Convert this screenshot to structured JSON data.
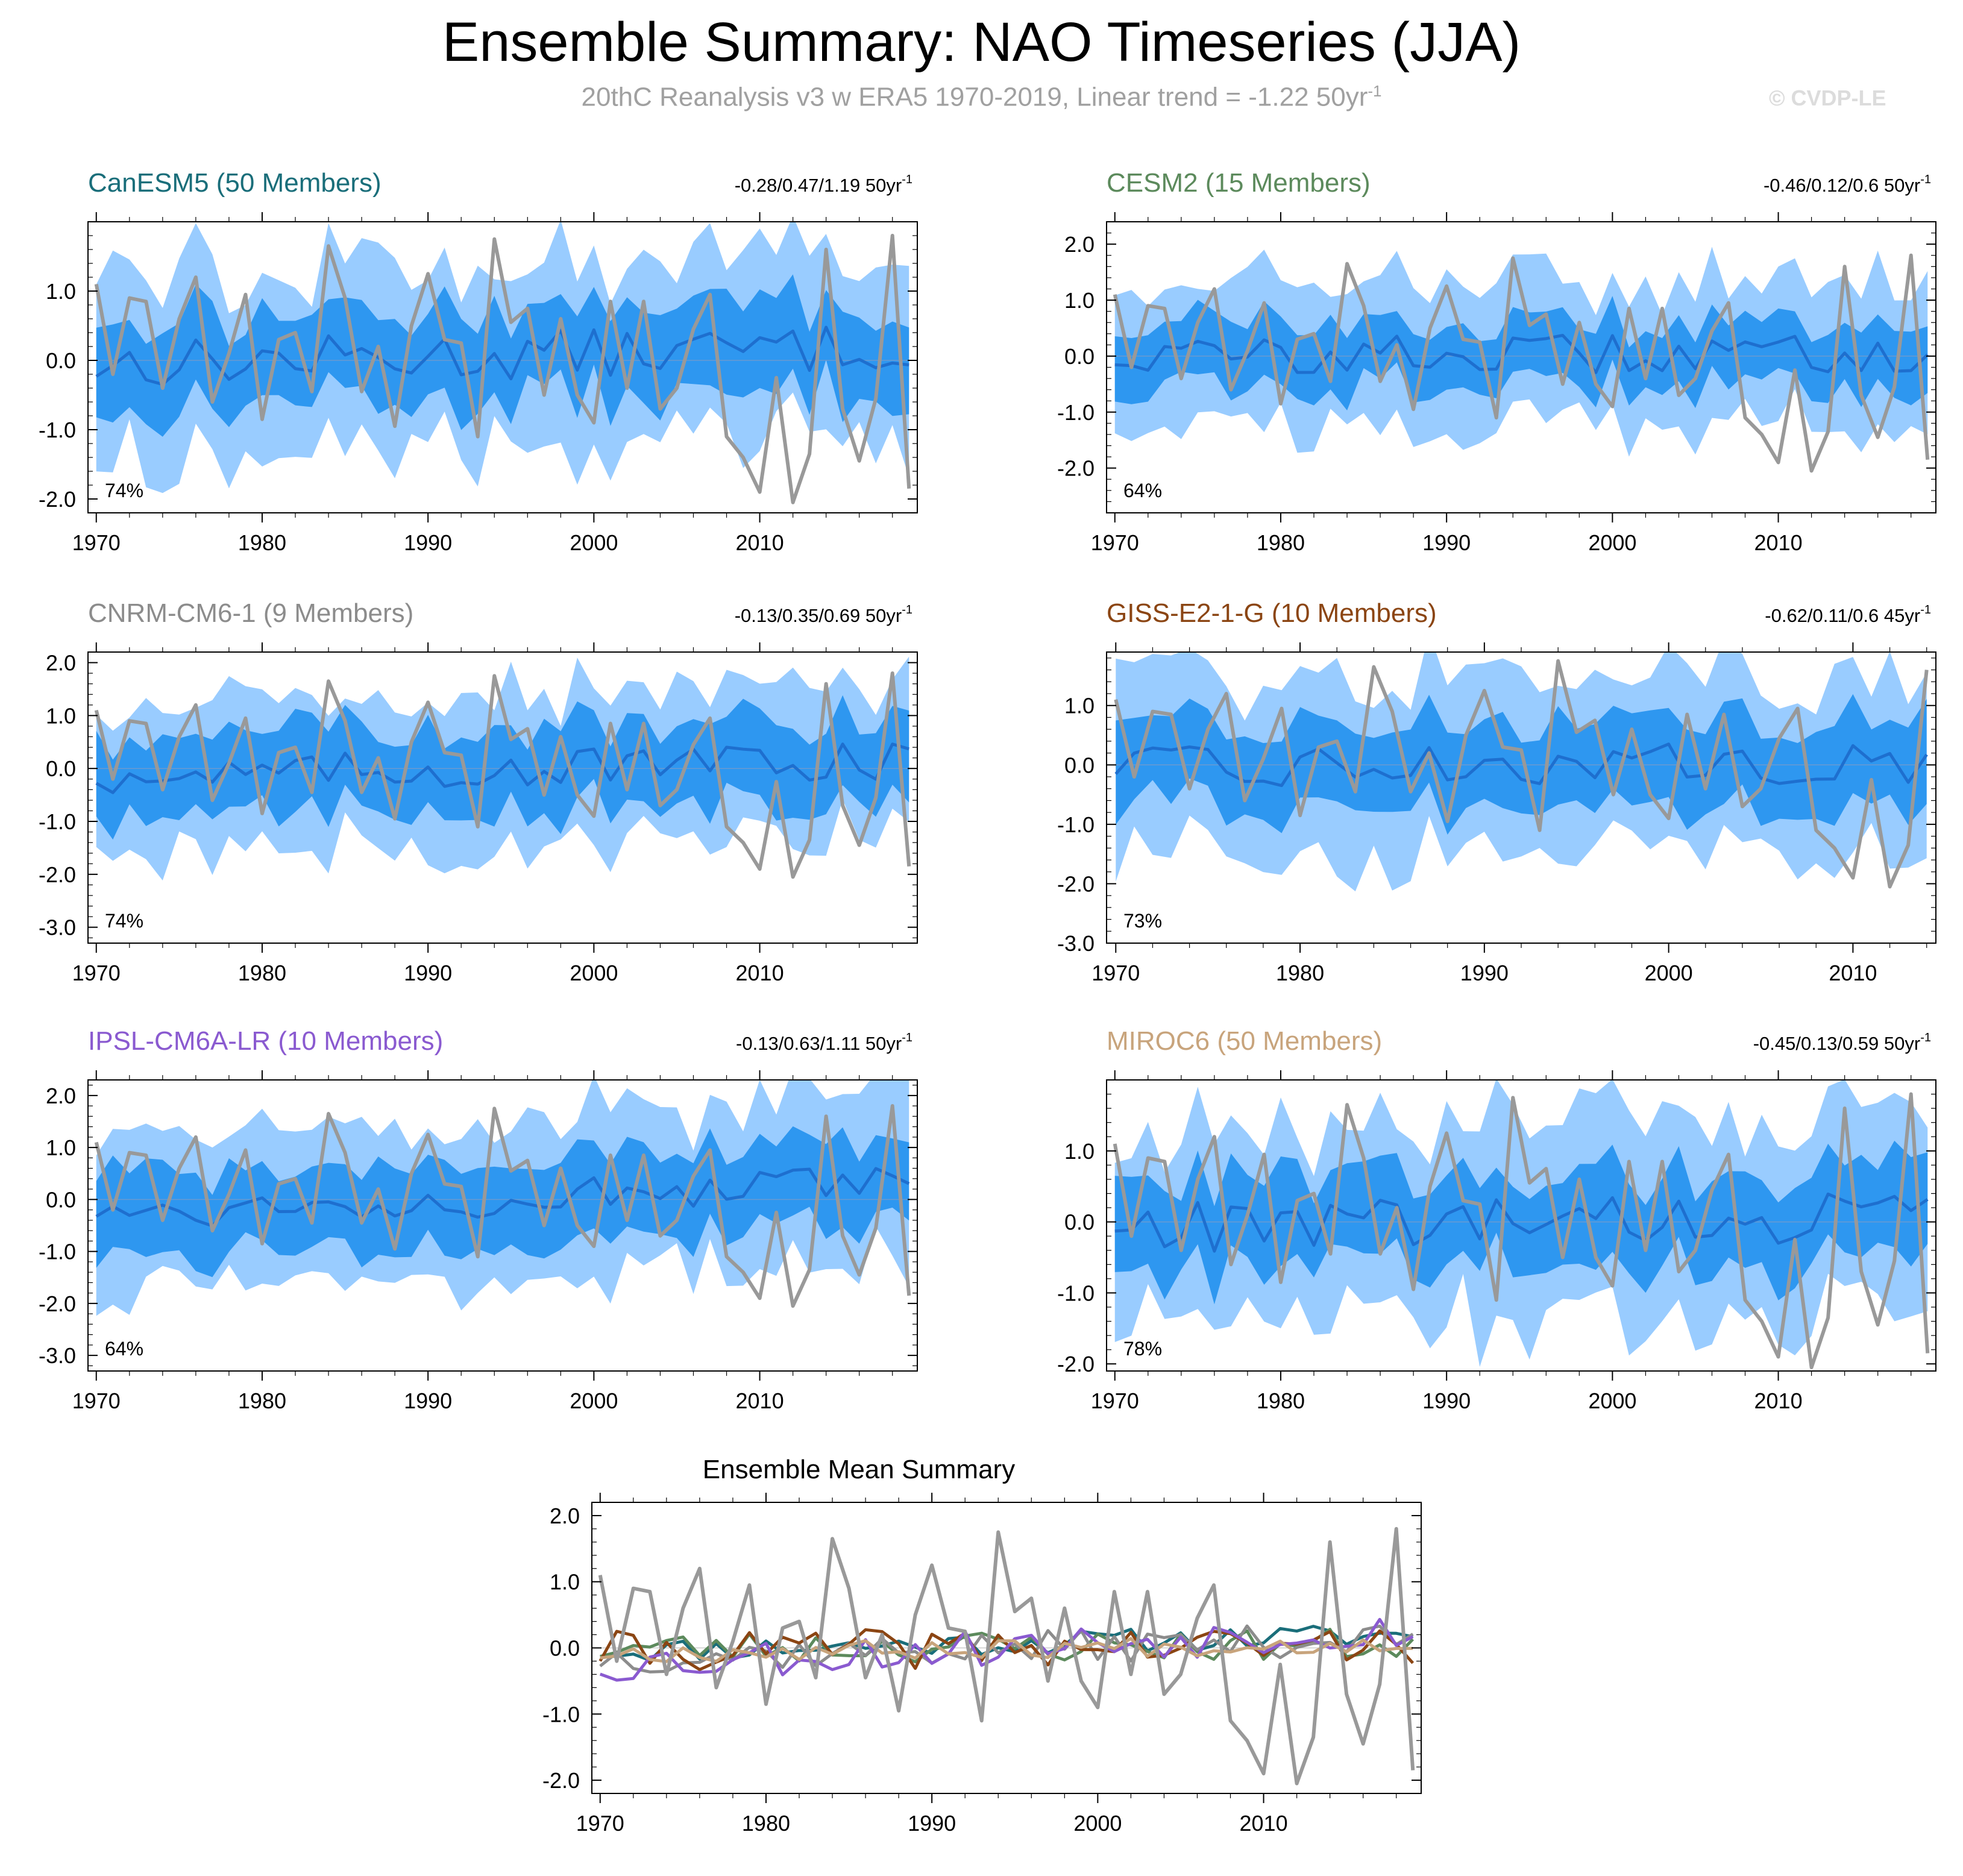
{
  "header": {
    "title": "Ensemble Summary: NAO Timeseries (JJA)",
    "subtitle_main": "20thC Reanalysis v3 w ERA5 1970-2019, Linear trend = -1.22 50yr",
    "subtitle_sup": "-1",
    "watermark": "© CVDP-LE"
  },
  "chart_data": [
    {
      "type": "area",
      "model": "CanESM5",
      "title": "CanESM5 (50 Members)",
      "title_color": "#1a6e7a",
      "trend_text": "-0.28/0.47/1.19 50yr",
      "trend_sup": "-1",
      "percent": "74%",
      "xlim": [
        1969.5,
        2019.5
      ],
      "ylim": [
        -2.2,
        2.0
      ],
      "yticks": [
        -2.0,
        -1.0,
        0.0,
        1.0
      ],
      "ytick_labels": [
        "-2.0",
        "-1.0",
        "0.0",
        "1.0"
      ],
      "xticks": [
        1970,
        1980,
        1990,
        2000,
        2010
      ],
      "ensemble_mean_base": -0.05,
      "ensemble_mean_trend": 0.25,
      "inner_halfwidth": 0.62,
      "outer_halfwidth": 1.25
    },
    {
      "type": "area",
      "model": "CESM2",
      "title": "CESM2 (15 Members)",
      "title_color": "#5c8a5c",
      "trend_text": "-0.46/0.12/0.6 50yr",
      "trend_sup": "-1",
      "percent": "64%",
      "xlim": [
        1969.5,
        2019.5
      ],
      "ylim": [
        -2.8,
        2.4
      ],
      "yticks": [
        -2.0,
        -1.0,
        0.0,
        1.0,
        2.0
      ],
      "ytick_labels": [
        "-2.0",
        "-1.0",
        "0.0",
        "1.0",
        "2.0"
      ],
      "xticks": [
        1970,
        1980,
        1990,
        2000,
        2010
      ],
      "ensemble_mean_base": 0.0,
      "ensemble_mean_trend": 0.05,
      "inner_halfwidth": 0.55,
      "outer_halfwidth": 1.25
    },
    {
      "type": "area",
      "model": "CNRM-CM6-1",
      "title": "CNRM-CM6-1 (9 Members)",
      "title_color": "#8c8c8c",
      "trend_text": "-0.13/0.35/0.69 50yr",
      "trend_sup": "-1",
      "percent": "74%",
      "xlim": [
        1969.5,
        2019.5
      ],
      "ylim": [
        -3.3,
        2.2
      ],
      "yticks": [
        -3.0,
        -2.0,
        -1.0,
        0.0,
        1.0,
        2.0
      ],
      "ytick_labels": [
        "-3.0",
        "-2.0",
        "-1.0",
        "0.0",
        "1.0",
        "2.0"
      ],
      "xticks": [
        1970,
        1980,
        1990,
        2000,
        2010
      ],
      "ensemble_mean_base": -0.15,
      "ensemble_mean_trend": 0.3,
      "inner_halfwidth": 0.75,
      "outer_halfwidth": 1.4
    },
    {
      "type": "area",
      "model": "GISS-E2-1-G",
      "title": "GISS-E2-1-G (10 Members)",
      "title_color": "#8b4513",
      "trend_text": "-0.62/0.11/0.6 45yr",
      "trend_sup": "-1",
      "percent": "73%",
      "xlim": [
        1969.5,
        2014.5
      ],
      "ylim": [
        -3.0,
        1.9
      ],
      "yticks": [
        -3.0,
        -2.0,
        -1.0,
        0.0,
        1.0
      ],
      "ytick_labels": [
        "-3.0",
        "-2.0",
        "-1.0",
        "0.0",
        "1.0"
      ],
      "xticks": [
        1970,
        1980,
        1990,
        2000,
        2010
      ],
      "ensemble_mean_base": -0.05,
      "ensemble_mean_trend": 0.1,
      "inner_halfwidth": 0.7,
      "outer_halfwidth": 1.45
    },
    {
      "type": "area",
      "model": "IPSL-CM6A-LR",
      "title": "IPSL-CM6A-LR (10 Members)",
      "title_color": "#8a5ad0",
      "trend_text": "-0.13/0.63/1.11 50yr",
      "trend_sup": "-1",
      "percent": "64%",
      "xlim": [
        1969.5,
        2019.5
      ],
      "ylim": [
        -3.3,
        2.3
      ],
      "yticks": [
        -3.0,
        -2.0,
        -1.0,
        0.0,
        1.0,
        2.0
      ],
      "ytick_labels": [
        "-3.0",
        "-2.0",
        "-1.0",
        "0.0",
        "1.0",
        "2.0"
      ],
      "xticks": [
        1970,
        1980,
        1990,
        2000,
        2010
      ],
      "ensemble_mean_base": -0.25,
      "ensemble_mean_trend": 0.55,
      "inner_halfwidth": 0.75,
      "outer_halfwidth": 1.5
    },
    {
      "type": "area",
      "model": "MIROC6",
      "title": "MIROC6 (50 Members)",
      "title_color": "#c8a47c",
      "trend_text": "-0.45/0.13/0.59 50yr",
      "trend_sup": "-1",
      "percent": "78%",
      "xlim": [
        1969.5,
        2019.5
      ],
      "ylim": [
        -2.1,
        2.0
      ],
      "yticks": [
        -2.0,
        -1.0,
        0.0,
        1.0
      ],
      "ytick_labels": [
        "-2.0",
        "-1.0",
        "0.0",
        "1.0"
      ],
      "xticks": [
        1970,
        1980,
        1990,
        2000,
        2010
      ],
      "ensemble_mean_base": -0.08,
      "ensemble_mean_trend": 0.15,
      "inner_halfwidth": 0.6,
      "outer_halfwidth": 1.35
    },
    {
      "type": "line",
      "model": "Ensemble Mean Summary",
      "title": "Ensemble Mean Summary",
      "title_color": "#000000",
      "xlim": [
        1969.5,
        2019.5
      ],
      "ylim": [
        -2.2,
        2.2
      ],
      "yticks": [
        -2.0,
        -1.0,
        0.0,
        1.0,
        2.0
      ],
      "ytick_labels": [
        "-2.0",
        "-1.0",
        "0.0",
        "1.0",
        "2.0"
      ],
      "xticks": [
        1970,
        1980,
        1990,
        2000,
        2010
      ],
      "series": [
        {
          "name": "CanESM5",
          "color": "#1a6e7a",
          "base": -0.05,
          "trend": 0.25,
          "amp": 0.18,
          "seed": 11
        },
        {
          "name": "CESM2",
          "color": "#5c8a5c",
          "base": 0.0,
          "trend": 0.05,
          "amp": 0.25,
          "seed": 23
        },
        {
          "name": "CNRM-CM6-1",
          "color": "#8c8c8c",
          "base": -0.15,
          "trend": 0.3,
          "amp": 0.25,
          "seed": 37
        },
        {
          "name": "GISS-E2-1-G",
          "color": "#8b4513",
          "base": -0.05,
          "trend": 0.1,
          "amp": 0.3,
          "seed": 41
        },
        {
          "name": "IPSL-CM6A-LR",
          "color": "#8a5ad0",
          "base": -0.25,
          "trend": 0.55,
          "amp": 0.3,
          "seed": 53
        },
        {
          "name": "MIROC6",
          "color": "#c8a47c",
          "base": -0.08,
          "trend": 0.15,
          "amp": 0.15,
          "seed": 67
        }
      ]
    }
  ],
  "observed": {
    "name": "20thC Reanalysis v3 w ERA5",
    "color": "#999999",
    "years": [
      1970,
      1971,
      1972,
      1973,
      1974,
      1975,
      1976,
      1977,
      1978,
      1979,
      1980,
      1981,
      1982,
      1983,
      1984,
      1985,
      1986,
      1987,
      1988,
      1989,
      1990,
      1991,
      1992,
      1993,
      1994,
      1995,
      1996,
      1997,
      1998,
      1999,
      2000,
      2001,
      2002,
      2003,
      2004,
      2005,
      2006,
      2007,
      2008,
      2009,
      2010,
      2011,
      2012,
      2013,
      2014,
      2015,
      2016,
      2017,
      2018,
      2019
    ],
    "values": [
      1.1,
      -0.2,
      0.9,
      0.85,
      -0.4,
      0.6,
      1.2,
      -0.6,
      0.1,
      0.95,
      -0.85,
      0.3,
      0.4,
      -0.45,
      1.65,
      0.9,
      -0.45,
      0.2,
      -0.95,
      0.5,
      1.25,
      0.3,
      0.25,
      -1.1,
      1.75,
      0.55,
      0.75,
      -0.5,
      0.6,
      -0.5,
      -0.9,
      0.85,
      -0.4,
      0.85,
      -0.7,
      -0.4,
      0.45,
      0.95,
      -1.1,
      -1.4,
      -1.9,
      -0.25,
      -2.05,
      -1.35,
      1.6,
      -0.7,
      -1.45,
      -0.55,
      1.8,
      -1.85
    ]
  }
}
